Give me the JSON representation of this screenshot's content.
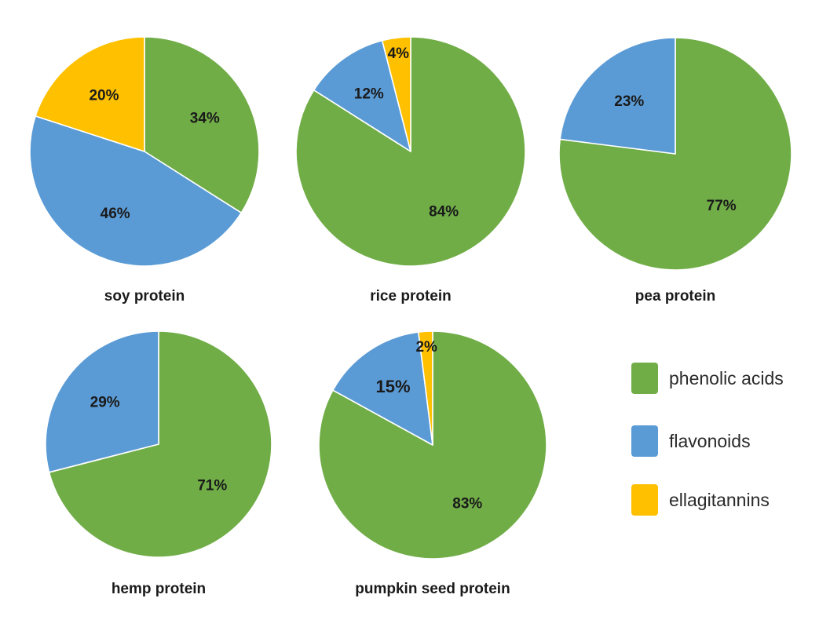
{
  "colors": {
    "phenolic_acids": "#70AD47",
    "flavonoids": "#5B9BD5",
    "ellagitannins": "#FFC000"
  },
  "legend": [
    {
      "key": "phenolic_acids",
      "label": "phenolic acids"
    },
    {
      "key": "flavonoids",
      "label": "flavonoids"
    },
    {
      "key": "ellagitannins",
      "label": "ellagitannins"
    }
  ],
  "chart_data": [
    {
      "type": "pie",
      "title": "soy protein",
      "slices": [
        {
          "category": "phenolic acids",
          "value": 34,
          "label": "34%"
        },
        {
          "category": "flavonoids",
          "value": 46,
          "label": "46%"
        },
        {
          "category": "ellagitannins",
          "value": 20,
          "label": "20%"
        }
      ]
    },
    {
      "type": "pie",
      "title": "rice protein",
      "slices": [
        {
          "category": "phenolic acids",
          "value": 84,
          "label": "84%"
        },
        {
          "category": "flavonoids",
          "value": 12,
          "label": "12%"
        },
        {
          "category": "ellagitannins",
          "value": 4,
          "label": "4%"
        }
      ]
    },
    {
      "type": "pie",
      "title": "pea protein",
      "slices": [
        {
          "category": "phenolic acids",
          "value": 77,
          "label": "77%"
        },
        {
          "category": "flavonoids",
          "value": 23,
          "label": "23%"
        }
      ]
    },
    {
      "type": "pie",
      "title": "hemp protein",
      "slices": [
        {
          "category": "phenolic acids",
          "value": 71,
          "label": "71%"
        },
        {
          "category": "flavonoids",
          "value": 29,
          "label": "29%"
        }
      ]
    },
    {
      "type": "pie",
      "title": "pumpkin seed protein",
      "slices": [
        {
          "category": "phenolic acids",
          "value": 83,
          "label": "83%"
        },
        {
          "category": "flavonoids",
          "value": 15,
          "label": "15%"
        },
        {
          "category": "ellagitannins",
          "value": 2,
          "label": "2%"
        }
      ]
    }
  ]
}
